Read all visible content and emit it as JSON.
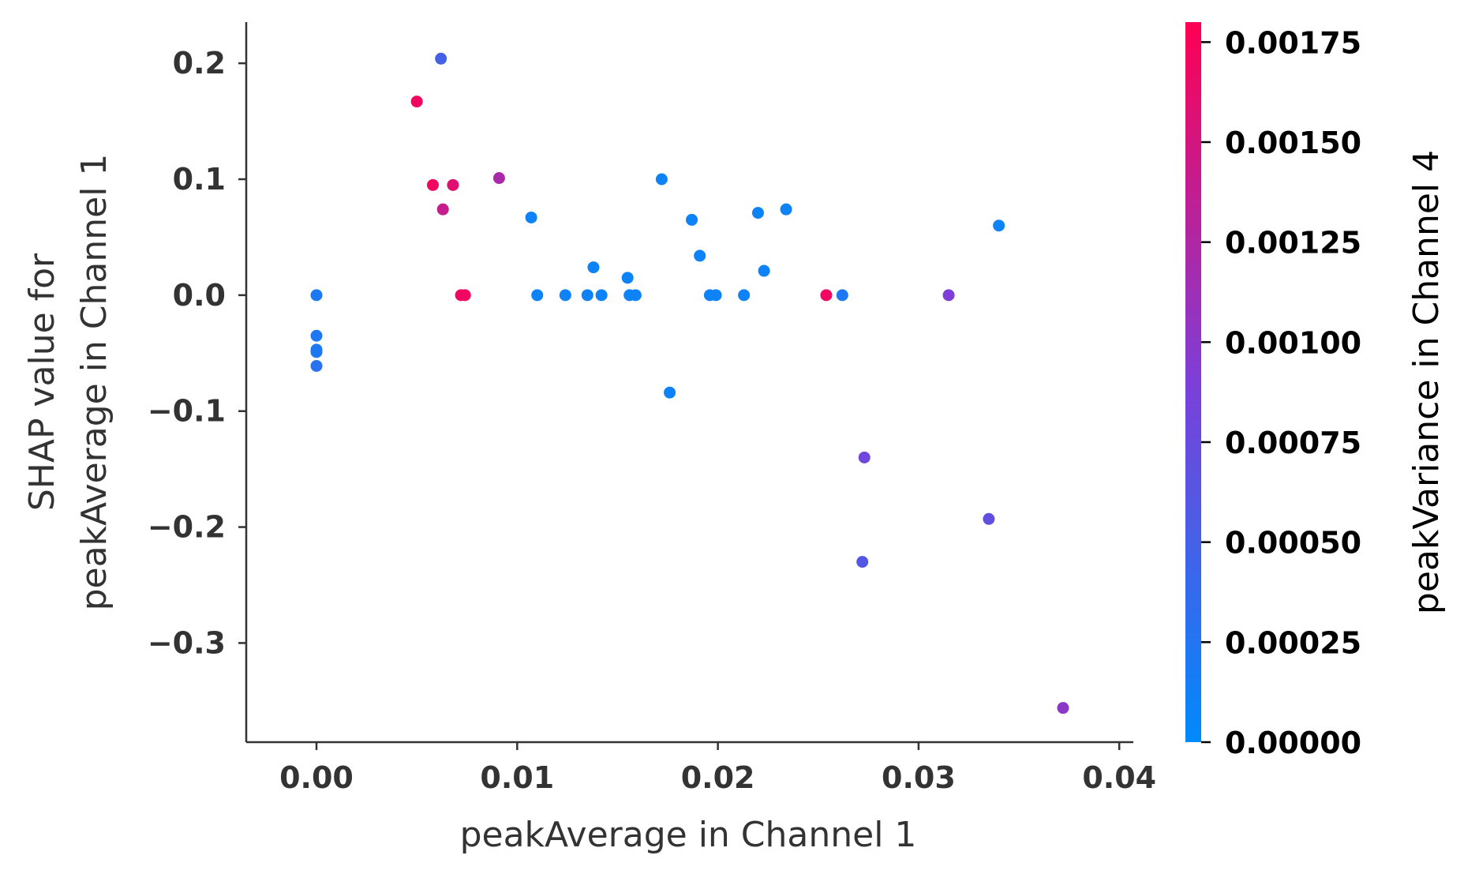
{
  "chart_data": {
    "type": "scatter",
    "xlabel": "peakAverage in Channel 1",
    "ylabel_lines": [
      "SHAP value for",
      "peakAverage in Channel 1"
    ],
    "xlim": [
      -0.0035,
      0.0407
    ],
    "ylim": [
      -0.3855,
      0.2355
    ],
    "x_ticks": [
      0.0,
      0.01,
      0.02,
      0.03,
      0.04
    ],
    "x_tick_labels": [
      "0.00",
      "0.01",
      "0.02",
      "0.03",
      "0.04"
    ],
    "y_ticks": [
      0.2,
      0.1,
      0.0,
      -0.1,
      -0.2,
      -0.3
    ],
    "y_tick_labels": [
      "0.2",
      "0.1",
      "0.0",
      "−0.1",
      "−0.2",
      "−0.3"
    ],
    "colorbar": {
      "label": "peakVariance in Channel 4",
      "range": [
        0.0,
        0.0018
      ],
      "ticks": [
        0.0,
        0.00025,
        0.0005,
        0.00075,
        0.001,
        0.00125,
        0.0015,
        0.00175
      ],
      "tick_labels": [
        "0.00000",
        "0.00025",
        "0.00050",
        "0.00075",
        "0.00100",
        "0.00125",
        "0.00150",
        "0.00175"
      ],
      "colors": [
        "#008afb",
        "#7d3fd8",
        "#ff0052"
      ]
    },
    "points": [
      {
        "x": 0.0,
        "y": 0.0,
        "c": 0.0002
      },
      {
        "x": 0.0,
        "y": -0.035,
        "c": 0.0002
      },
      {
        "x": 0.0,
        "y": -0.047,
        "c": 0.0002
      },
      {
        "x": 0.0,
        "y": -0.049,
        "c": 0.0002
      },
      {
        "x": 0.0,
        "y": -0.061,
        "c": 0.0003
      },
      {
        "x": 0.0062,
        "y": 0.204,
        "c": 0.0005
      },
      {
        "x": 0.005,
        "y": 0.167,
        "c": 0.0017
      },
      {
        "x": 0.0058,
        "y": 0.095,
        "c": 0.0017
      },
      {
        "x": 0.0068,
        "y": 0.095,
        "c": 0.0016
      },
      {
        "x": 0.0063,
        "y": 0.074,
        "c": 0.0014
      },
      {
        "x": 0.0072,
        "y": 0.0,
        "c": 0.0017
      },
      {
        "x": 0.0074,
        "y": 0.0,
        "c": 0.0017
      },
      {
        "x": 0.0091,
        "y": 0.101,
        "c": 0.0012
      },
      {
        "x": 0.0107,
        "y": 0.067,
        "c": 0.0001
      },
      {
        "x": 0.011,
        "y": 0.0,
        "c": 0.0001
      },
      {
        "x": 0.0124,
        "y": 0.0,
        "c": 0.0001
      },
      {
        "x": 0.0135,
        "y": 0.0,
        "c": 0.0001
      },
      {
        "x": 0.0138,
        "y": 0.024,
        "c": 0.0001
      },
      {
        "x": 0.0142,
        "y": 0.0,
        "c": 0.0001
      },
      {
        "x": 0.0155,
        "y": 0.015,
        "c": 0.0001
      },
      {
        "x": 0.0156,
        "y": 0.0,
        "c": 0.0001
      },
      {
        "x": 0.0159,
        "y": 0.0,
        "c": 0.0001
      },
      {
        "x": 0.0172,
        "y": 0.1,
        "c": 0.0001
      },
      {
        "x": 0.0176,
        "y": -0.084,
        "c": 0.0001
      },
      {
        "x": 0.0187,
        "y": 0.065,
        "c": 0.0001
      },
      {
        "x": 0.0191,
        "y": 0.034,
        "c": 0.0001
      },
      {
        "x": 0.0196,
        "y": 0.0,
        "c": 0.0001
      },
      {
        "x": 0.0199,
        "y": 0.0,
        "c": 0.0001
      },
      {
        "x": 0.0213,
        "y": 0.0,
        "c": 0.0001
      },
      {
        "x": 0.022,
        "y": 0.071,
        "c": 0.0001
      },
      {
        "x": 0.0223,
        "y": 0.021,
        "c": 0.0001
      },
      {
        "x": 0.0234,
        "y": 0.074,
        "c": 0.0001
      },
      {
        "x": 0.0254,
        "y": 0.0,
        "c": 0.0017
      },
      {
        "x": 0.0262,
        "y": 0.0,
        "c": 0.0002
      },
      {
        "x": 0.0273,
        "y": -0.14,
        "c": 0.0008
      },
      {
        "x": 0.0272,
        "y": -0.23,
        "c": 0.0006
      },
      {
        "x": 0.0315,
        "y": 0.0,
        "c": 0.0009
      },
      {
        "x": 0.0335,
        "y": -0.193,
        "c": 0.0007
      },
      {
        "x": 0.034,
        "y": 0.06,
        "c": 0.0001
      },
      {
        "x": 0.0372,
        "y": -0.356,
        "c": 0.001
      }
    ]
  }
}
